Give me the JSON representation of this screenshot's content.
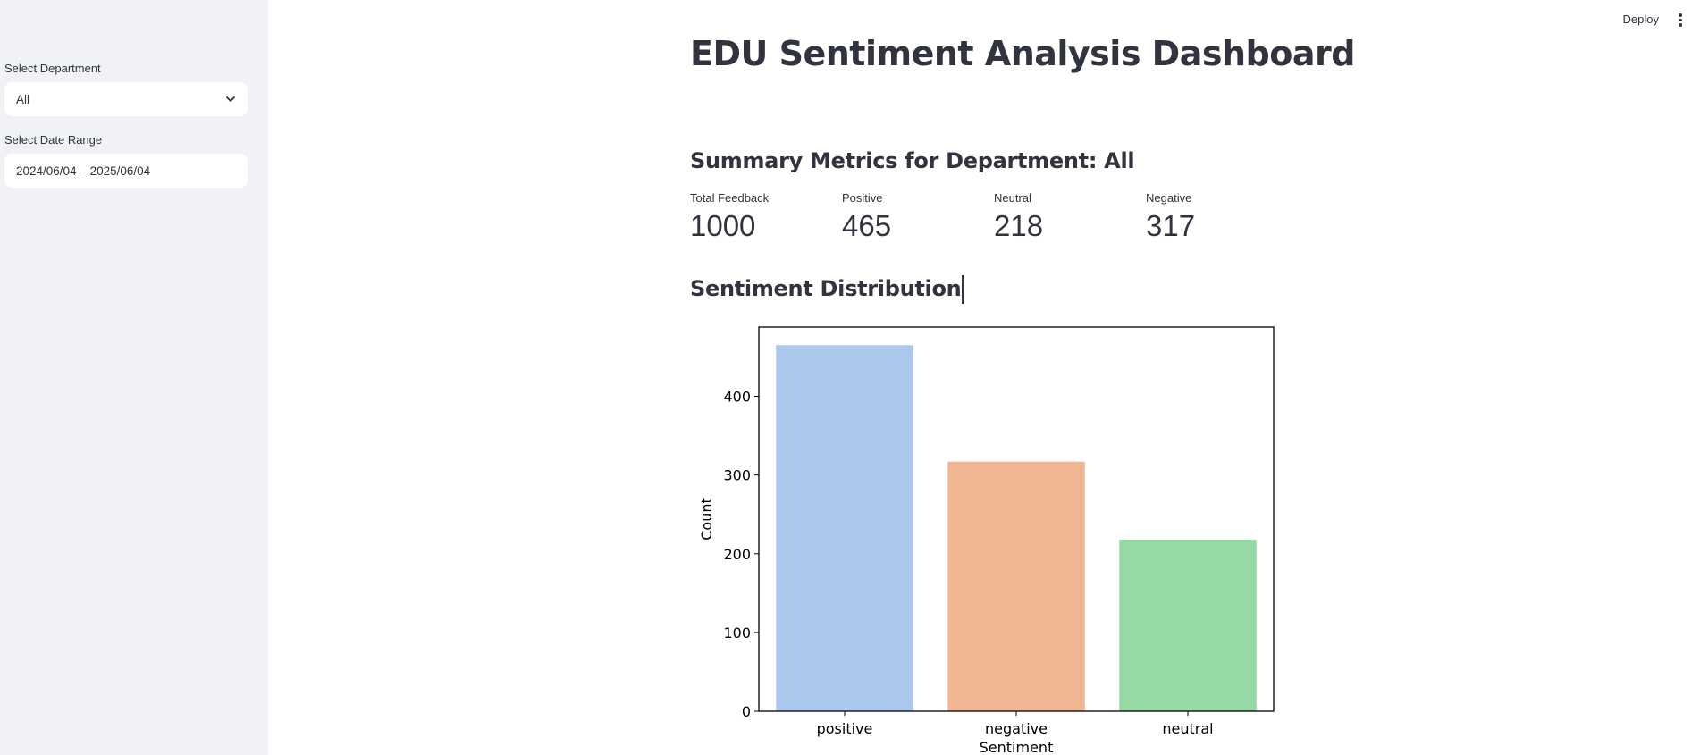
{
  "sidebar": {
    "department_label": "Select Department",
    "department_value": "All",
    "date_label": "Select Date Range",
    "date_value": "2024/06/04 – 2025/06/04"
  },
  "header": {
    "deploy_label": "Deploy",
    "menu_icon": "kebab-menu-icon"
  },
  "main": {
    "title": "EDU Sentiment Analysis Dashboard",
    "summary_heading": "Summary Metrics for Department: All",
    "metrics": [
      {
        "label": "Total Feedback",
        "value": "1000"
      },
      {
        "label": "Positive",
        "value": "465"
      },
      {
        "label": "Neutral",
        "value": "218"
      },
      {
        "label": "Negative",
        "value": "317"
      }
    ],
    "distribution_heading": "Sentiment Distribution"
  },
  "chart_data": {
    "type": "bar",
    "categories": [
      "positive",
      "negative",
      "neutral"
    ],
    "values": [
      465,
      317,
      218
    ],
    "colors": [
      "#abc9ed",
      "#f1b792",
      "#97d9a4"
    ],
    "xlabel": "Sentiment",
    "ylabel": "Count",
    "ylim": [
      0,
      488
    ],
    "yticks": [
      0,
      100,
      200,
      300,
      400
    ],
    "grid": false
  }
}
